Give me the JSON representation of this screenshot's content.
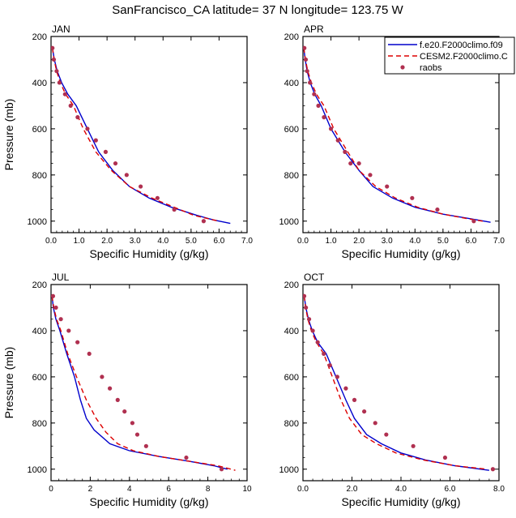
{
  "figure": {
    "title": "SanFrancisco_CA  latitude= 37 N longitude= 123.75 W"
  },
  "legend": {
    "placement": "top-right of APR panel",
    "entries": [
      {
        "label": "f.e20.F2000climo.f09",
        "color": "#0000cc",
        "style": "solid"
      },
      {
        "label": "CESM2.F2000climo.C",
        "color": "#dd0000",
        "style": "dashed"
      },
      {
        "label": "raobs",
        "color": "#b03050",
        "style": "dots"
      }
    ]
  },
  "chart_data": [
    {
      "type": "line",
      "panel_label": "JAN",
      "xlabel": "Specific Humidity (g/kg)",
      "ylabel": "Pressure (mb)",
      "xlim": [
        0,
        7
      ],
      "ylim": [
        1050,
        200
      ],
      "xticks": [
        0,
        1,
        2,
        3,
        4,
        5,
        6,
        7
      ],
      "xtick_labels": [
        "0.0",
        "1.0",
        "2.0",
        "3.0",
        "4.0",
        "5.0",
        "6.0",
        "7.0"
      ],
      "yticks": [
        200,
        400,
        600,
        800,
        1000
      ],
      "ytick_labels": [
        "200",
        "400",
        "600",
        "800",
        "1000"
      ],
      "series": [
        {
          "name": "f.e20.F2000climo.f09",
          "color": "#0000cc",
          "dash": "",
          "x": [
            0.05,
            0.12,
            0.22,
            0.38,
            0.6,
            0.9,
            1.3,
            1.7,
            2.2,
            2.8,
            3.5,
            4.3,
            5.2,
            5.8,
            6.4
          ],
          "y": [
            250,
            300,
            350,
            400,
            450,
            500,
            600,
            700,
            780,
            850,
            900,
            940,
            975,
            995,
            1010
          ]
        },
        {
          "name": "CESM2.F2000climo.C",
          "color": "#dd0000",
          "dash": "6,4",
          "x": [
            0.05,
            0.11,
            0.2,
            0.33,
            0.52,
            0.8,
            1.15,
            1.6,
            2.15,
            2.8,
            3.6,
            4.4,
            5.1,
            5.8,
            6.0
          ],
          "y": [
            250,
            300,
            350,
            400,
            450,
            500,
            600,
            700,
            780,
            850,
            900,
            940,
            975,
            995,
            1000
          ]
        },
        {
          "name": "raobs",
          "color": "#b03050",
          "marker": "dot",
          "x": [
            0.05,
            0.1,
            0.2,
            0.3,
            0.5,
            0.7,
            0.95,
            1.3,
            1.6,
            1.95,
            2.3,
            2.7,
            3.2,
            3.8,
            4.4,
            5.45
          ],
          "y": [
            250,
            300,
            350,
            400,
            450,
            500,
            550,
            600,
            650,
            700,
            750,
            800,
            850,
            900,
            950,
            1000
          ]
        }
      ]
    },
    {
      "type": "line",
      "panel_label": "APR",
      "xlabel": "Specific Humidity (g/kg)",
      "ylabel": "",
      "xlim": [
        0,
        7
      ],
      "ylim": [
        1050,
        200
      ],
      "xticks": [
        0,
        1,
        2,
        3,
        4,
        5,
        6,
        7
      ],
      "xtick_labels": [
        "0.0",
        "1.0",
        "2.0",
        "3.0",
        "4.0",
        "5.0",
        "6.0",
        "7.0"
      ],
      "yticks": [
        200,
        400,
        600,
        800,
        1000
      ],
      "ytick_labels": [
        "200",
        "400",
        "600",
        "800",
        "1000"
      ],
      "series": [
        {
          "name": "f.e20.F2000climo.f09",
          "color": "#0000cc",
          "dash": "",
          "x": [
            0.03,
            0.08,
            0.15,
            0.26,
            0.42,
            0.65,
            1.0,
            1.5,
            2.0,
            2.5,
            3.2,
            4.0,
            5.0,
            6.0,
            6.7
          ],
          "y": [
            250,
            300,
            350,
            400,
            450,
            500,
            600,
            700,
            780,
            850,
            900,
            940,
            970,
            990,
            1005
          ]
        },
        {
          "name": "CESM2.F2000climo.C",
          "color": "#dd0000",
          "dash": "6,4",
          "x": [
            0.03,
            0.09,
            0.17,
            0.3,
            0.48,
            0.75,
            1.1,
            1.6,
            2.0,
            2.6,
            3.3,
            4.1,
            5.0,
            5.9,
            6.5
          ],
          "y": [
            250,
            300,
            350,
            400,
            450,
            500,
            600,
            700,
            780,
            850,
            900,
            940,
            970,
            990,
            1002
          ]
        },
        {
          "name": "raobs",
          "color": "#b03050",
          "marker": "dot",
          "x": [
            0.05,
            0.1,
            0.15,
            0.25,
            0.4,
            0.55,
            0.75,
            1.0,
            1.25,
            1.5,
            1.7,
            2.0,
            2.4,
            3.0,
            3.9,
            4.8,
            6.1
          ],
          "y": [
            250,
            300,
            350,
            400,
            450,
            500,
            550,
            600,
            650,
            700,
            750,
            750,
            800,
            850,
            900,
            950,
            1000
          ]
        }
      ]
    },
    {
      "type": "line",
      "panel_label": "JUL",
      "xlabel": "Specific Humidity (g/kg)",
      "ylabel": "Pressure (mb)",
      "xlim": [
        0,
        10
      ],
      "ylim": [
        1050,
        200
      ],
      "xticks": [
        0,
        2,
        4,
        6,
        8,
        10
      ],
      "xtick_labels": [
        "0",
        "2",
        "4",
        "6",
        "8",
        "10"
      ],
      "yticks": [
        200,
        400,
        600,
        800,
        1000
      ],
      "ytick_labels": [
        "200",
        "400",
        "600",
        "800",
        "1000"
      ],
      "series": [
        {
          "name": "f.e20.F2000climo.f09",
          "color": "#0000cc",
          "dash": "",
          "x": [
            0.05,
            0.12,
            0.25,
            0.45,
            0.8,
            1.2,
            1.5,
            1.8,
            2.2,
            3.0,
            4.0,
            5.5,
            7.0,
            8.3,
            9.0
          ],
          "y": [
            250,
            300,
            350,
            400,
            500,
            600,
            700,
            780,
            830,
            890,
            920,
            945,
            965,
            985,
            1000
          ]
        },
        {
          "name": "CESM2.F2000climo.C",
          "color": "#dd0000",
          "dash": "6,4",
          "x": [
            0.05,
            0.14,
            0.28,
            0.5,
            0.85,
            1.3,
            1.8,
            2.3,
            2.8,
            3.4,
            4.2,
            5.5,
            7.0,
            8.5,
            9.4
          ],
          "y": [
            250,
            300,
            350,
            400,
            500,
            600,
            700,
            780,
            840,
            890,
            920,
            945,
            965,
            985,
            1005
          ]
        },
        {
          "name": "raobs",
          "color": "#b03050",
          "marker": "dot",
          "x": [
            0.1,
            0.25,
            0.5,
            0.9,
            1.35,
            1.95,
            2.6,
            3.0,
            3.4,
            3.75,
            4.15,
            4.4,
            4.85,
            6.9,
            8.7
          ],
          "y": [
            250,
            300,
            350,
            400,
            450,
            500,
            600,
            650,
            700,
            750,
            800,
            850,
            900,
            950,
            1000
          ]
        }
      ]
    },
    {
      "type": "line",
      "panel_label": "OCT",
      "xlabel": "Specific Humidity (g/kg)",
      "ylabel": "",
      "xlim": [
        0,
        8
      ],
      "ylim": [
        1050,
        200
      ],
      "xticks": [
        0,
        2,
        4,
        6,
        8
      ],
      "xtick_labels": [
        "0.0",
        "2.0",
        "4.0",
        "6.0",
        "8.0"
      ],
      "yticks": [
        200,
        400,
        600,
        800,
        1000
      ],
      "ytick_labels": [
        "200",
        "400",
        "600",
        "800",
        "1000"
      ],
      "series": [
        {
          "name": "f.e20.F2000climo.f09",
          "color": "#0000cc",
          "dash": "",
          "x": [
            0.05,
            0.12,
            0.22,
            0.38,
            0.6,
            0.95,
            1.35,
            1.75,
            2.1,
            2.6,
            3.2,
            4.0,
            5.0,
            6.2,
            7.6
          ],
          "y": [
            250,
            300,
            350,
            400,
            450,
            500,
            600,
            700,
            780,
            850,
            890,
            930,
            960,
            985,
            1005
          ]
        },
        {
          "name": "CESM2.F2000climo.C",
          "color": "#dd0000",
          "dash": "6,4",
          "x": [
            0.05,
            0.11,
            0.2,
            0.34,
            0.55,
            0.85,
            1.2,
            1.55,
            1.9,
            2.4,
            3.0,
            3.8,
            4.9,
            6.2,
            7.5
          ],
          "y": [
            250,
            300,
            350,
            400,
            450,
            500,
            600,
            700,
            780,
            850,
            890,
            930,
            960,
            985,
            1000
          ]
        },
        {
          "name": "raobs",
          "color": "#b03050",
          "marker": "dot",
          "x": [
            0.05,
            0.12,
            0.25,
            0.4,
            0.6,
            0.85,
            1.1,
            1.4,
            1.75,
            2.1,
            2.5,
            2.95,
            3.4,
            4.5,
            5.8,
            7.75
          ],
          "y": [
            250,
            300,
            350,
            400,
            450,
            500,
            550,
            600,
            650,
            700,
            750,
            800,
            850,
            900,
            950,
            1000
          ]
        }
      ]
    }
  ]
}
